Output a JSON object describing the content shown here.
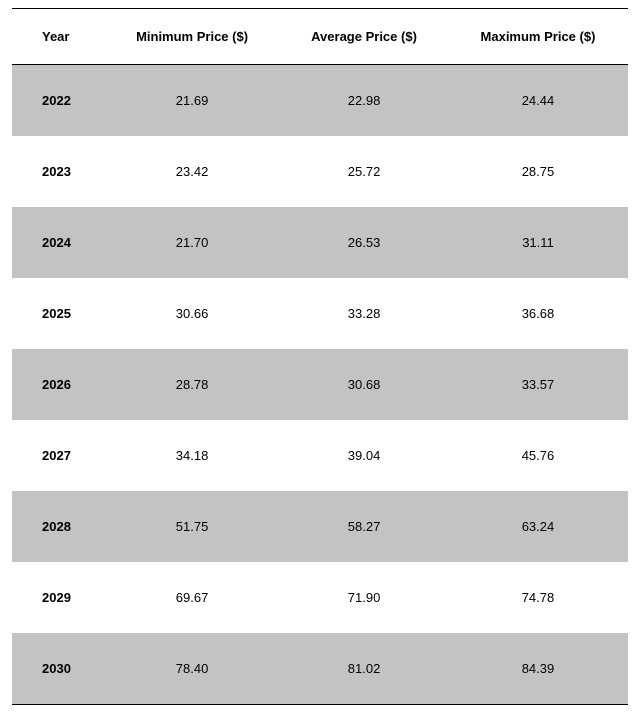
{
  "table": {
    "type": "table",
    "columns": [
      {
        "label": "Year",
        "align": "left",
        "bold": true
      },
      {
        "label": "Minimum Price ($)",
        "align": "center",
        "bold": false
      },
      {
        "label": "Average Price ($)",
        "align": "center",
        "bold": false
      },
      {
        "label": "Maximum Price ($)",
        "align": "center",
        "bold": false
      }
    ],
    "rows": [
      [
        "2022",
        "21.69",
        "22.98",
        "24.44"
      ],
      [
        "2023",
        "23.42",
        "25.72",
        "28.75"
      ],
      [
        "2024",
        "21.70",
        "26.53",
        "31.11"
      ],
      [
        "2025",
        "30.66",
        "33.28",
        "36.68"
      ],
      [
        "2026",
        "28.78",
        "30.68",
        "33.57"
      ],
      [
        "2027",
        "34.18",
        "39.04",
        "45.76"
      ],
      [
        "2028",
        "51.75",
        "58.27",
        "63.24"
      ],
      [
        "2029",
        "69.67",
        "71.90",
        "74.78"
      ],
      [
        "2030",
        "78.40",
        "81.02",
        "84.39"
      ]
    ],
    "styling": {
      "header_fontsize": 13,
      "cell_fontsize": 13,
      "header_font_weight": "bold",
      "first_col_font_weight": "bold",
      "border_color": "#000000",
      "odd_row_bg": "#c3c3c3",
      "even_row_bg": "#ffffff",
      "text_color": "#000000",
      "row_padding_vertical": 28,
      "header_padding_vertical": 20
    }
  }
}
